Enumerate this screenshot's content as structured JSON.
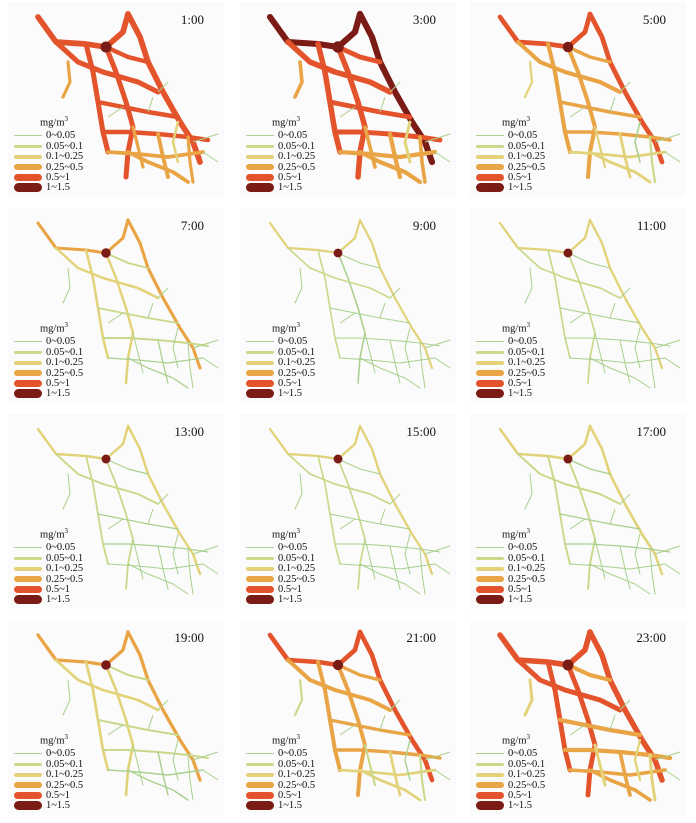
{
  "unit_label": "mg/m",
  "unit_sup": "3",
  "legend": [
    {
      "label": "0~0.05",
      "color": "#a9d08e"
    },
    {
      "label": "0.05~0.1",
      "color": "#c8d98a"
    },
    {
      "label": "0.1~0.25",
      "color": "#e2d37a"
    },
    {
      "label": "0.25~0.5",
      "color": "#e9a445"
    },
    {
      "label": "0.5~1",
      "color": "#e4542c"
    },
    {
      "label": "1~1.5",
      "color": "#7b1b16"
    }
  ],
  "panels": [
    {
      "time": "1:00",
      "level": 0.78
    },
    {
      "time": "3:00",
      "level": 0.85
    },
    {
      "time": "5:00",
      "level": 0.62
    },
    {
      "time": "7:00",
      "level": 0.35
    },
    {
      "time": "9:00",
      "level": 0.2
    },
    {
      "time": "11:00",
      "level": 0.22
    },
    {
      "time": "13:00",
      "level": 0.24
    },
    {
      "time": "15:00",
      "level": 0.22
    },
    {
      "time": "17:00",
      "level": 0.26
    },
    {
      "time": "19:00",
      "level": 0.38
    },
    {
      "time": "21:00",
      "level": 0.6
    },
    {
      "time": "23:00",
      "level": 0.75
    }
  ]
}
